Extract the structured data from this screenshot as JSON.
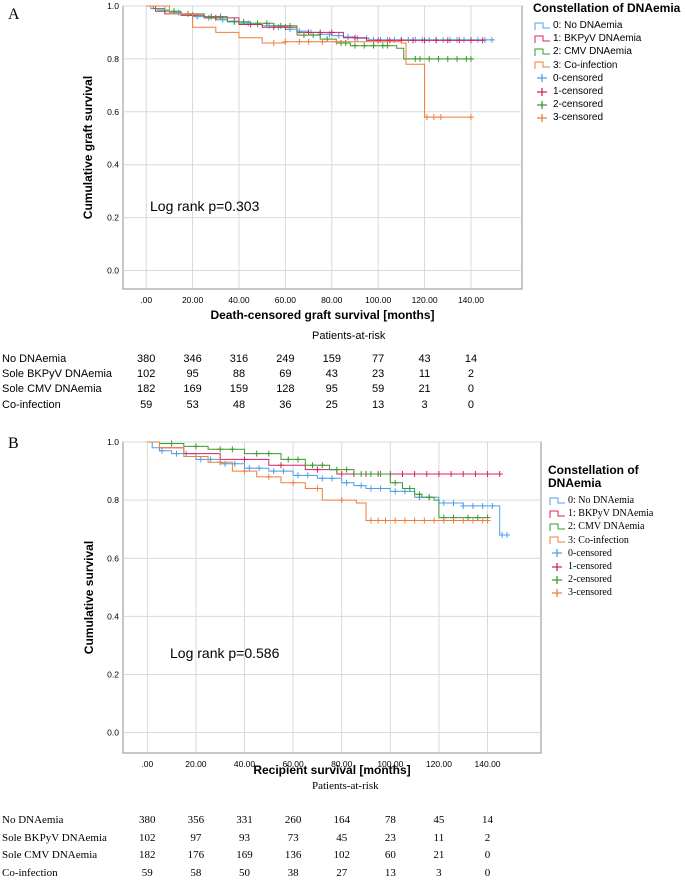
{
  "chart_data": [
    {
      "type": "line",
      "panel_label": "A",
      "xlabel": "Death-censored graft survival [months]",
      "ylabel": "Cumulative graft survival",
      "xlim": [
        -10,
        162
      ],
      "ylim": [
        -0.07,
        1.0
      ],
      "x_ticks": [
        0,
        20,
        40,
        60,
        80,
        100,
        120,
        140
      ],
      "x_tick_labels": [
        ".00",
        "20.00",
        "40.00",
        "60.00",
        "80.00",
        "100.00",
        "120.00",
        "140.00"
      ],
      "y_ticks": [
        0.0,
        0.2,
        0.4,
        0.6,
        0.8,
        1.0
      ],
      "y_tick_labels": [
        "0.0",
        "0.2",
        "0.4",
        "0.6",
        "0.8",
        "1.0"
      ],
      "grid": true,
      "annotation": "Log rank p=0.303",
      "legend": {
        "title": "Constellation of DNAemia",
        "placement": "right",
        "entries": [
          {
            "label": "0: No DNAemia",
            "color": "#4f9ee8",
            "kind": "line"
          },
          {
            "label": "1: BKPyV DNAemia",
            "color": "#d6245a",
            "kind": "line"
          },
          {
            "label": "2: CMV DNAemia",
            "color": "#3a9a2e",
            "kind": "line"
          },
          {
            "label": "3: Co-infection",
            "color": "#f07d3a",
            "kind": "line"
          },
          {
            "label": "0-censored",
            "color": "#4f9ee8",
            "kind": "censor"
          },
          {
            "label": "1-censored",
            "color": "#d6245a",
            "kind": "censor"
          },
          {
            "label": "2-censored",
            "color": "#3a9a2e",
            "kind": "censor"
          },
          {
            "label": "3-censored",
            "color": "#f07d3a",
            "kind": "censor"
          }
        ]
      },
      "series": [
        {
          "name": "0: No DNAemia",
          "color": "#4f9ee8",
          "steps": [
            [
              0,
              1.0
            ],
            [
              2,
              0.99
            ],
            [
              5,
              0.985
            ],
            [
              10,
              0.975
            ],
            [
              15,
              0.965
            ],
            [
              20,
              0.96
            ],
            [
              25,
              0.955
            ],
            [
              30,
              0.948
            ],
            [
              35,
              0.943
            ],
            [
              40,
              0.935
            ],
            [
              45,
              0.93
            ],
            [
              50,
              0.925
            ],
            [
              55,
              0.92
            ],
            [
              60,
              0.912
            ],
            [
              65,
              0.905
            ],
            [
              70,
              0.9
            ],
            [
              75,
              0.893
            ],
            [
              80,
              0.888
            ],
            [
              85,
              0.883
            ],
            [
              90,
              0.878
            ],
            [
              96,
              0.872
            ],
            [
              150,
              0.872
            ]
          ],
          "censored": [
            8,
            14,
            22,
            27,
            33,
            38,
            44,
            48,
            53,
            57,
            62,
            66,
            71,
            75,
            79,
            83,
            87,
            91,
            95,
            98,
            101,
            104,
            107,
            110,
            113,
            116,
            119,
            122,
            125,
            128,
            131,
            134,
            137,
            140,
            143,
            146,
            149
          ]
        },
        {
          "name": "1: BKPyV DNAemia",
          "color": "#d6245a",
          "steps": [
            [
              0,
              1.0
            ],
            [
              4,
              0.98
            ],
            [
              8,
              0.97
            ],
            [
              15,
              0.965
            ],
            [
              25,
              0.955
            ],
            [
              40,
              0.93
            ],
            [
              50,
              0.92
            ],
            [
              65,
              0.9
            ],
            [
              85,
              0.88
            ],
            [
              95,
              0.87
            ],
            [
              145,
              0.87
            ]
          ],
          "censored": [
            20,
            30,
            45,
            55,
            60,
            70,
            75,
            80,
            90,
            100,
            105,
            110,
            115,
            120,
            125,
            130,
            135,
            140,
            145
          ]
        },
        {
          "name": "2: CMV DNAemia",
          "color": "#3a9a2e",
          "steps": [
            [
              0,
              1.0
            ],
            [
              3,
              0.99
            ],
            [
              8,
              0.98
            ],
            [
              15,
              0.97
            ],
            [
              25,
              0.96
            ],
            [
              35,
              0.94
            ],
            [
              45,
              0.935
            ],
            [
              55,
              0.925
            ],
            [
              65,
              0.89
            ],
            [
              75,
              0.875
            ],
            [
              82,
              0.86
            ],
            [
              88,
              0.85
            ],
            [
              108,
              0.84
            ],
            [
              111,
              0.8
            ],
            [
              140,
              0.8
            ]
          ],
          "censored": [
            12,
            18,
            28,
            32,
            38,
            42,
            48,
            52,
            58,
            62,
            68,
            72,
            78,
            84,
            86,
            90,
            94,
            98,
            102,
            104,
            112,
            116,
            118,
            122,
            126,
            130,
            134,
            138,
            140
          ]
        },
        {
          "name": "3: Co-infection",
          "color": "#f07d3a",
          "steps": [
            [
              0,
              1.0
            ],
            [
              10,
              0.97
            ],
            [
              20,
              0.92
            ],
            [
              30,
              0.9
            ],
            [
              40,
              0.88
            ],
            [
              50,
              0.86
            ],
            [
              60,
              0.865
            ],
            [
              110,
              0.86
            ],
            [
              112,
              0.78
            ],
            [
              119,
              0.78
            ],
            [
              120,
              0.58
            ],
            [
              140,
              0.58
            ]
          ],
          "censored": [
            55,
            60,
            66,
            70,
            76,
            82,
            121,
            124,
            127,
            140
          ]
        }
      ],
      "risk_table": {
        "caption": "Patients-at-risk",
        "times": [
          0,
          20,
          40,
          60,
          80,
          100,
          120,
          140
        ],
        "rows": [
          {
            "label": "No DNAemia",
            "values": [
              "380",
              "346",
              "316",
              "249",
              "159",
              "77",
              "43",
              "14"
            ]
          },
          {
            "label": "Sole BKPyV DNAemia",
            "values": [
              "102",
              "95",
              "88",
              "69",
              "43",
              "23",
              "11",
              "2"
            ]
          },
          {
            "label": "Sole CMV DNAemia",
            "values": [
              "182",
              "169",
              "159",
              "128",
              "95",
              "59",
              "21",
              "0"
            ]
          },
          {
            "label": "Co-infection",
            "values": [
              "59",
              "53",
              "48",
              "36",
              "25",
              "13",
              "3",
              "0"
            ]
          }
        ]
      }
    },
    {
      "type": "line",
      "panel_label": "B",
      "xlabel": "Recipient survival [months]",
      "ylabel": "Cumulative survival",
      "xlim": [
        -10,
        162
      ],
      "ylim": [
        -0.07,
        1.0
      ],
      "x_ticks": [
        0,
        20,
        40,
        60,
        80,
        100,
        120,
        140
      ],
      "x_tick_labels": [
        ".00",
        "20.00",
        "40.00",
        "60.00",
        "80.00",
        "100.00",
        "120.00",
        "140.00"
      ],
      "y_ticks": [
        0.0,
        0.2,
        0.4,
        0.6,
        0.8,
        1.0
      ],
      "y_tick_labels": [
        "0.0",
        "0.2",
        "0.4",
        "0.6",
        "0.8",
        "1.0"
      ],
      "grid": true,
      "annotation": "Log rank p=0.586",
      "legend": {
        "title": "Constellation of DNAemia",
        "placement": "right",
        "entries": [
          {
            "label": "0: No DNAemia",
            "color": "#4f9ee8",
            "kind": "line"
          },
          {
            "label": "1: BKPyV DNAemia",
            "color": "#d6245a",
            "kind": "line"
          },
          {
            "label": "2: CMV DNAemia",
            "color": "#3a9a2e",
            "kind": "line"
          },
          {
            "label": "3: Co-infection",
            "color": "#f07d3a",
            "kind": "line"
          },
          {
            "label": "0-censored",
            "color": "#4f9ee8",
            "kind": "censor"
          },
          {
            "label": "1-censored",
            "color": "#d6245a",
            "kind": "censor"
          },
          {
            "label": "2-censored",
            "color": "#3a9a2e",
            "kind": "censor"
          },
          {
            "label": "3-censored",
            "color": "#f07d3a",
            "kind": "censor"
          }
        ]
      },
      "series": [
        {
          "name": "0: No DNAemia",
          "color": "#4f9ee8",
          "steps": [
            [
              0,
              1.0
            ],
            [
              2,
              0.98
            ],
            [
              5,
              0.97
            ],
            [
              10,
              0.96
            ],
            [
              20,
              0.94
            ],
            [
              30,
              0.925
            ],
            [
              40,
              0.91
            ],
            [
              50,
              0.9
            ],
            [
              60,
              0.885
            ],
            [
              70,
              0.875
            ],
            [
              80,
              0.86
            ],
            [
              85,
              0.85
            ],
            [
              90,
              0.84
            ],
            [
              100,
              0.83
            ],
            [
              110,
              0.81
            ],
            [
              120,
              0.79
            ],
            [
              130,
              0.78
            ],
            [
              143,
              0.78
            ],
            [
              145,
              0.68
            ],
            [
              148,
              0.68
            ]
          ],
          "censored": [
            6,
            12,
            16,
            22,
            26,
            32,
            36,
            42,
            46,
            52,
            56,
            62,
            66,
            72,
            76,
            82,
            88,
            92,
            96,
            102,
            106,
            112,
            116,
            122,
            126,
            130,
            134,
            138,
            142,
            146,
            148
          ]
        },
        {
          "name": "1: BKPyV DNAemia",
          "color": "#d6245a",
          "steps": [
            [
              0,
              1.0
            ],
            [
              5,
              0.98
            ],
            [
              15,
              0.96
            ],
            [
              30,
              0.94
            ],
            [
              50,
              0.92
            ],
            [
              65,
              0.905
            ],
            [
              78,
              0.89
            ],
            [
              145,
              0.89
            ]
          ],
          "censored": [
            40,
            55,
            70,
            80,
            85,
            90,
            95,
            100,
            105,
            110,
            115,
            120,
            125,
            130,
            135,
            140,
            145
          ]
        },
        {
          "name": "2: CMV DNAemia",
          "color": "#3a9a2e",
          "steps": [
            [
              0,
              1.0
            ],
            [
              5,
              0.995
            ],
            [
              15,
              0.985
            ],
            [
              25,
              0.975
            ],
            [
              40,
              0.96
            ],
            [
              55,
              0.94
            ],
            [
              65,
              0.92
            ],
            [
              75,
              0.905
            ],
            [
              85,
              0.89
            ],
            [
              100,
              0.86
            ],
            [
              105,
              0.84
            ],
            [
              110,
              0.82
            ],
            [
              113,
              0.81
            ],
            [
              118,
              0.8
            ],
            [
              120,
              0.74
            ],
            [
              140,
              0.74
            ]
          ],
          "censored": [
            10,
            20,
            30,
            35,
            45,
            50,
            58,
            62,
            68,
            72,
            78,
            82,
            88,
            92,
            96,
            102,
            108,
            112,
            116,
            122,
            126,
            132,
            136,
            140
          ]
        },
        {
          "name": "3: Co-infection",
          "color": "#f07d3a",
          "steps": [
            [
              0,
              1.0
            ],
            [
              5,
              0.98
            ],
            [
              15,
              0.95
            ],
            [
              25,
              0.93
            ],
            [
              35,
              0.9
            ],
            [
              45,
              0.88
            ],
            [
              55,
              0.86
            ],
            [
              65,
              0.84
            ],
            [
              72,
              0.8
            ],
            [
              86,
              0.79
            ],
            [
              90,
              0.73
            ],
            [
              140,
              0.73
            ]
          ],
          "censored": [
            30,
            40,
            50,
            60,
            70,
            80,
            92,
            95,
            98,
            102,
            106,
            110,
            114,
            118,
            122,
            126,
            130,
            134,
            138,
            140
          ]
        }
      ],
      "risk_table": {
        "caption": "Patients-at-risk",
        "times": [
          0,
          20,
          40,
          60,
          80,
          100,
          120,
          140
        ],
        "rows": [
          {
            "label": "No DNAemia",
            "values": [
              "380",
              "356",
              "331",
              "260",
              "164",
              "78",
              "45",
              "14"
            ]
          },
          {
            "label": "Sole BKPyV DNAemia",
            "values": [
              "102",
              "97",
              "93",
              "73",
              "45",
              "23",
              "11",
              "2"
            ]
          },
          {
            "label": "Sole CMV DNAemia",
            "values": [
              "182",
              "176",
              "169",
              "136",
              "102",
              "60",
              "21",
              "0"
            ]
          },
          {
            "label": "Co-infection",
            "values": [
              "59",
              "58",
              "50",
              "38",
              "27",
              "13",
              "3",
              "0"
            ]
          }
        ]
      }
    }
  ]
}
